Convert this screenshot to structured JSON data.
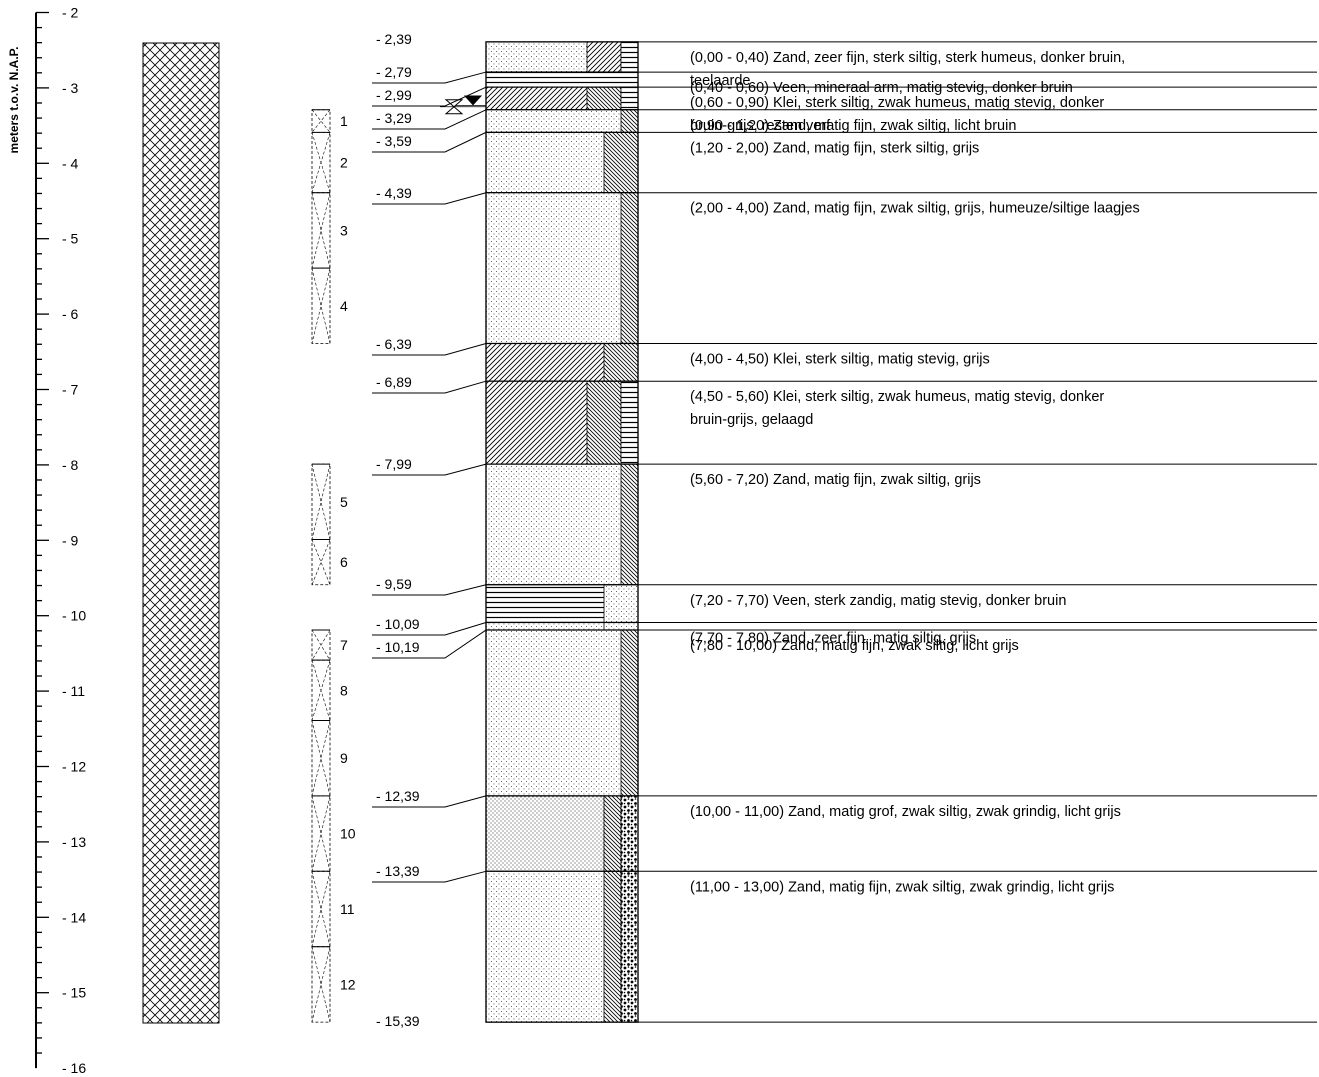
{
  "axis": {
    "label": "meters t.o.v. N.A.P.",
    "ticks": [
      {
        "v": -2,
        "label": "- 2"
      },
      {
        "v": -3,
        "label": "- 3"
      },
      {
        "v": -4,
        "label": "- 4"
      },
      {
        "v": -5,
        "label": "- 5"
      },
      {
        "v": -6,
        "label": "- 6"
      },
      {
        "v": -7,
        "label": "- 7"
      },
      {
        "v": -8,
        "label": "- 8"
      },
      {
        "v": -9,
        "label": "- 9"
      },
      {
        "v": -10,
        "label": "- 10"
      },
      {
        "v": -11,
        "label": "- 11"
      },
      {
        "v": -12,
        "label": "- 12"
      },
      {
        "v": -13,
        "label": "- 13"
      },
      {
        "v": -14,
        "label": "- 14"
      },
      {
        "v": -15,
        "label": "- 15"
      },
      {
        "v": -16,
        "label": "- 16"
      }
    ]
  },
  "column_top": -2.39,
  "column_bottom": -15.39,
  "depth_labels": [
    {
      "text": "- 2,39",
      "v": -2.39
    },
    {
      "text": "- 2,79",
      "v": -2.79
    },
    {
      "text": "- 2,99",
      "v": -2.99
    },
    {
      "text": "- 3,29",
      "v": -3.29
    },
    {
      "text": "- 3,59",
      "v": -3.59
    },
    {
      "text": "- 4,39",
      "v": -4.39
    },
    {
      "text": "- 6,39",
      "v": -6.39
    },
    {
      "text": "- 6,89",
      "v": -6.89
    },
    {
      "text": "- 7,99",
      "v": -7.99
    },
    {
      "text": "- 9,59",
      "v": -9.59
    },
    {
      "text": "- 10,09",
      "v": -10.09
    },
    {
      "text": "- 10,19",
      "v": -10.19
    },
    {
      "text": "- 12,39",
      "v": -12.39
    },
    {
      "text": "- 13,39",
      "v": -13.39
    },
    {
      "text": "- 15,39",
      "v": -15.39
    }
  ],
  "water_levels": [
    {
      "symbol": "filled-triangle",
      "v": -3.22
    },
    {
      "symbol": "open-hourglass",
      "v": -3.29
    }
  ],
  "samples": [
    {
      "label": "1",
      "from": -3.29,
      "to": -3.59
    },
    {
      "label": "2",
      "from": -3.59,
      "to": -4.39
    },
    {
      "label": "3",
      "from": -4.39,
      "to": -5.39
    },
    {
      "label": "4",
      "from": -5.39,
      "to": -6.39
    },
    {
      "label": "5",
      "from": -7.99,
      "to": -8.99
    },
    {
      "label": "6",
      "from": -8.99,
      "to": -9.59
    },
    {
      "label": "7",
      "from": -10.19,
      "to": -10.59
    },
    {
      "label": "8",
      "from": -10.59,
      "to": -11.39
    },
    {
      "label": "9",
      "from": -11.39,
      "to": -12.39
    },
    {
      "label": "10",
      "from": -12.39,
      "to": -13.39
    },
    {
      "label": "11",
      "from": -13.39,
      "to": -14.39
    },
    {
      "label": "12",
      "from": -14.39,
      "to": -15.39
    }
  ],
  "layers": [
    {
      "top": -2.39,
      "bottom": -2.79,
      "main": "sand-fine",
      "sec": [
        "clay-diag",
        "peat-horiz"
      ],
      "description": [
        "(0,00 - 0,40) Zand, zeer fijn, sterk siltig, sterk humeus, donker bruin,",
        "teelaarde"
      ]
    },
    {
      "top": -2.79,
      "bottom": -2.99,
      "main": "peat-horiz",
      "sec": [],
      "description": [
        "(0,40 - 0,60) Veen, mineraal arm, matig stevig, donker bruin"
      ]
    },
    {
      "top": -2.99,
      "bottom": -3.29,
      "main": "clay-diag",
      "sec": [
        "silt-diag",
        "peat-horiz"
      ],
      "description": [
        "(0,60 - 0,90) Klei, sterk siltig, zwak humeus, matig stevig, donker",
        "bruin-grijs, resten verf"
      ]
    },
    {
      "top": -3.29,
      "bottom": -3.59,
      "main": "sand-fine",
      "sec": [
        "silt-diag-thin"
      ],
      "description": [
        "(0,90 - 1,20) Zand, matig fijn, zwak siltig, licht bruin"
      ]
    },
    {
      "top": -3.59,
      "bottom": -4.39,
      "main": "sand-fine",
      "sec": [
        "silt-diag"
      ],
      "description": [
        "(1,20 - 2,00) Zand, matig fijn, sterk siltig, grijs"
      ]
    },
    {
      "top": -4.39,
      "bottom": -6.39,
      "main": "sand-fine",
      "sec": [
        "silt-diag-thin"
      ],
      "description": [
        "(2,00 - 4,00) Zand, matig fijn, zwak siltig, grijs, humeuze/siltige laagjes"
      ]
    },
    {
      "top": -6.39,
      "bottom": -6.89,
      "main": "clay-diag",
      "sec": [
        "silt-diag"
      ],
      "description": [
        "(4,00 - 4,50) Klei, sterk siltig, matig stevig, grijs"
      ]
    },
    {
      "top": -6.89,
      "bottom": -7.99,
      "main": "clay-diag",
      "sec": [
        "silt-diag",
        "peat-horiz"
      ],
      "description": [
        "(4,50 - 5,60) Klei, sterk siltig, zwak humeus, matig stevig, donker",
        "bruin-grijs, gelaagd"
      ]
    },
    {
      "top": -7.99,
      "bottom": -9.59,
      "main": "sand-fine",
      "sec": [
        "silt-diag-thin"
      ],
      "description": [
        "(5,60 - 7,20) Zand, matig fijn, zwak siltig, grijs"
      ]
    },
    {
      "top": -9.59,
      "bottom": -10.09,
      "main": "peat-horiz",
      "sec": [
        "sand-fine-wide"
      ],
      "description": [
        "(7,20 - 7,70) Veen, sterk zandig, matig stevig, donker bruin"
      ]
    },
    {
      "top": -10.09,
      "bottom": -10.19,
      "main": "sand-fine",
      "sec": [
        "sand-fine-wide"
      ],
      "description": [
        "(7,70 - 7,80) Zand, zeer fijn, matig siltig, grijs"
      ]
    },
    {
      "top": -10.19,
      "bottom": -12.39,
      "main": "sand-fine",
      "sec": [
        "silt-diag-thin"
      ],
      "description": [
        "(7,80 - 10,00) Zand, matig fijn, zwak siltig, licht grijs"
      ]
    },
    {
      "top": -12.39,
      "bottom": -13.39,
      "main": "sand-coarse",
      "sec": [
        "silt-diag-narrow",
        "gravel"
      ],
      "description": [
        "(10,00 - 11,00) Zand, matig grof, zwak siltig, zwak grindig, licht grijs"
      ]
    },
    {
      "top": -13.39,
      "bottom": -15.39,
      "main": "sand-fine",
      "sec": [
        "silt-diag-narrow",
        "gravel"
      ],
      "description": [
        "(11,00 - 13,00) Zand, matig fijn, zwak siltig, zwak grindig, licht grijs"
      ]
    }
  ]
}
